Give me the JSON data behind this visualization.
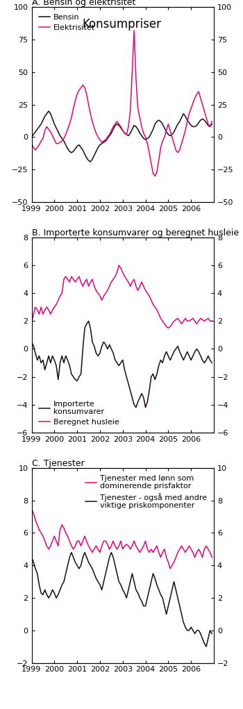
{
  "title": "Konsumpriser",
  "panel_a_title": "A. Bensin og elektrisitet",
  "panel_b_title": "B. Importerte konsumvarer og beregnet husleie",
  "panel_c_title": "C. Tjenester",
  "panel_a_ylim": [
    -50,
    100
  ],
  "panel_b_ylim": [
    -6,
    8
  ],
  "panel_c_ylim": [
    -2,
    10
  ],
  "panel_a_yticks": [
    -50,
    -25,
    0,
    25,
    50,
    75,
    100
  ],
  "panel_b_yticks": [
    -6,
    -4,
    -2,
    0,
    2,
    4,
    6,
    8
  ],
  "panel_c_yticks": [
    -2,
    0,
    2,
    4,
    6,
    8,
    10
  ],
  "color_dark": "#1a0a0a",
  "color_magenta": "#e6007e",
  "legend_a": [
    "Bensin",
    "Elektrisitet"
  ],
  "legend_b_line1": "Importerte",
  "legend_b_line2": "konsumvarer",
  "legend_b2": "Beregnet husleie",
  "legend_c1_line1": "Tjenester med lønn som",
  "legend_c1_line2": "dominerende prisfaktor",
  "legend_c2_line1": "Tjenester - også med andre",
  "legend_c2_line2": "viktige priskomponenter",
  "xtick_labels": [
    "1999",
    "2000",
    "2001",
    "2002",
    "2003",
    "2004",
    "2005",
    "2006"
  ],
  "bensin": [
    0,
    2,
    4,
    6,
    8,
    10,
    13,
    16,
    18,
    20,
    18,
    14,
    10,
    7,
    4,
    1,
    -1,
    -3,
    -6,
    -9,
    -11,
    -12,
    -11,
    -9,
    -7,
    -6,
    -8,
    -10,
    -13,
    -16,
    -18,
    -19,
    -17,
    -14,
    -11,
    -8,
    -6,
    -5,
    -4,
    -3,
    -1,
    1,
    3,
    6,
    9,
    10,
    9,
    7,
    5,
    3,
    2,
    1,
    3,
    6,
    9,
    8,
    6,
    3,
    1,
    -1,
    -2,
    -1,
    0,
    3,
    6,
    10,
    12,
    13,
    12,
    10,
    7,
    4,
    2,
    1,
    2,
    4,
    7,
    10,
    12,
    15,
    18,
    16,
    13,
    11,
    9,
    8,
    8,
    9,
    11,
    13,
    14,
    13,
    11,
    9,
    8,
    10
  ],
  "elektrisitet": [
    -5,
    -8,
    -10,
    -8,
    -6,
    -3,
    -1,
    5,
    8,
    6,
    4,
    1,
    -2,
    -5,
    -5,
    -4,
    -3,
    -1,
    2,
    6,
    10,
    15,
    22,
    28,
    33,
    36,
    38,
    40,
    38,
    33,
    25,
    18,
    12,
    7,
    3,
    0,
    -2,
    -4,
    -3,
    -2,
    0,
    2,
    5,
    8,
    10,
    12,
    10,
    8,
    5,
    3,
    2,
    8,
    20,
    50,
    82,
    45,
    22,
    15,
    8,
    3,
    0,
    -5,
    -12,
    -20,
    -28,
    -30,
    -27,
    -18,
    -8,
    -3,
    0,
    5,
    10,
    5,
    0,
    -5,
    -10,
    -12,
    -10,
    -5,
    0,
    5,
    12,
    18,
    22,
    26,
    30,
    33,
    35,
    30,
    25,
    20,
    15,
    10,
    8,
    12
  ],
  "importerte": [
    0.5,
    0.2,
    -0.3,
    -0.8,
    -0.5,
    -1.0,
    -0.8,
    -1.5,
    -1.0,
    -0.5,
    -1.0,
    -0.5,
    -0.8,
    -1.2,
    -2.2,
    -1.0,
    -0.5,
    -1.0,
    -0.5,
    -0.8,
    -1.2,
    -1.8,
    -2.0,
    -2.2,
    -2.3,
    -2.0,
    -1.8,
    0.0,
    1.5,
    1.8,
    2.0,
    1.5,
    0.5,
    0.2,
    -0.3,
    -0.5,
    -0.3,
    0.2,
    0.5,
    0.3,
    0.0,
    0.3,
    0.0,
    -0.3,
    -0.8,
    -1.0,
    -1.2,
    -1.0,
    -0.8,
    -1.5,
    -2.0,
    -2.5,
    -3.0,
    -3.5,
    -4.0,
    -4.2,
    -3.8,
    -3.5,
    -3.2,
    -3.5,
    -4.2,
    -3.8,
    -3.0,
    -2.0,
    -1.8,
    -2.2,
    -1.8,
    -1.2,
    -0.8,
    -1.0,
    -0.5,
    -0.2,
    -0.5,
    -0.8,
    -0.5,
    -0.2,
    0.0,
    0.2,
    -0.2,
    -0.5,
    -0.8,
    -0.5,
    -0.2,
    -0.5,
    -0.8,
    -0.5,
    -0.2,
    0.0,
    -0.2,
    -0.5,
    -0.8,
    -1.0,
    -0.8,
    -0.5,
    -0.8,
    -1.0
  ],
  "husleie": [
    1.8,
    2.5,
    3.0,
    2.8,
    2.5,
    3.0,
    2.5,
    2.8,
    3.0,
    2.8,
    2.5,
    2.8,
    3.0,
    3.2,
    3.5,
    3.8,
    4.0,
    5.0,
    5.2,
    5.0,
    4.8,
    5.2,
    5.0,
    4.8,
    5.0,
    5.2,
    4.8,
    4.5,
    4.8,
    5.0,
    4.5,
    4.8,
    5.0,
    4.5,
    4.2,
    4.0,
    3.8,
    3.5,
    3.8,
    4.0,
    4.2,
    4.5,
    4.8,
    5.0,
    5.2,
    5.5,
    6.0,
    5.8,
    5.5,
    5.2,
    5.0,
    4.8,
    4.5,
    4.8,
    5.0,
    4.5,
    4.2,
    4.5,
    4.8,
    4.5,
    4.2,
    4.0,
    3.8,
    3.5,
    3.2,
    3.0,
    2.8,
    2.5,
    2.2,
    2.0,
    1.8,
    1.6,
    1.5,
    1.6,
    1.8,
    2.0,
    2.1,
    2.2,
    2.0,
    1.8,
    2.0,
    2.2,
    2.0,
    2.0,
    2.1,
    2.2,
    2.0,
    1.8,
    2.0,
    2.2,
    2.1,
    2.0,
    2.1,
    2.2,
    2.0,
    2.0
  ],
  "tjenester_lonn": [
    7.5,
    7.2,
    6.8,
    6.5,
    6.2,
    6.0,
    5.8,
    5.5,
    5.2,
    5.0,
    5.2,
    5.5,
    5.8,
    5.5,
    5.2,
    6.2,
    6.5,
    6.3,
    6.0,
    5.8,
    5.5,
    5.2,
    5.0,
    5.2,
    5.5,
    5.5,
    5.2,
    5.5,
    5.8,
    5.5,
    5.2,
    5.0,
    4.8,
    5.0,
    5.2,
    5.0,
    4.8,
    5.2,
    5.5,
    5.5,
    5.3,
    5.0,
    5.2,
    5.5,
    5.2,
    5.0,
    5.2,
    5.5,
    5.0,
    5.2,
    5.3,
    5.2,
    5.0,
    5.2,
    5.5,
    5.2,
    5.0,
    4.8,
    5.0,
    5.2,
    5.5,
    5.0,
    4.8,
    5.0,
    4.8,
    5.0,
    5.2,
    4.8,
    4.5,
    4.8,
    5.0,
    4.5,
    4.2,
    3.8,
    4.0,
    4.2,
    4.5,
    4.8,
    5.0,
    5.2,
    5.0,
    4.8,
    5.0,
    5.2,
    5.0,
    4.8,
    4.5,
    4.8,
    5.0,
    4.8,
    4.5,
    5.0,
    5.2,
    5.0,
    4.8,
    4.5
  ],
  "tjenester_andre": [
    4.5,
    4.2,
    3.8,
    3.5,
    2.8,
    2.3,
    2.2,
    2.5,
    2.2,
    2.0,
    2.2,
    2.5,
    2.3,
    2.0,
    2.2,
    2.5,
    2.8,
    3.0,
    3.5,
    4.0,
    4.5,
    4.8,
    4.5,
    4.2,
    4.0,
    3.8,
    4.0,
    4.5,
    4.8,
    4.5,
    4.2,
    4.0,
    3.8,
    3.5,
    3.2,
    3.0,
    2.8,
    2.5,
    3.0,
    3.5,
    4.0,
    4.5,
    4.8,
    4.5,
    4.0,
    3.5,
    3.0,
    2.8,
    2.5,
    2.3,
    2.0,
    2.5,
    3.0,
    3.5,
    3.0,
    2.5,
    2.3,
    2.0,
    1.8,
    1.5,
    1.5,
    2.0,
    2.5,
    3.0,
    3.5,
    3.2,
    2.8,
    2.5,
    2.2,
    2.0,
    1.5,
    1.0,
    1.5,
    2.0,
    2.5,
    3.0,
    2.5,
    2.0,
    1.5,
    1.0,
    0.5,
    0.2,
    0.0,
    0.0,
    0.2,
    0.0,
    -0.2,
    0.0,
    0.0,
    -0.2,
    -0.5,
    -0.8,
    -1.0,
    -0.5,
    0.0,
    -0.2
  ]
}
